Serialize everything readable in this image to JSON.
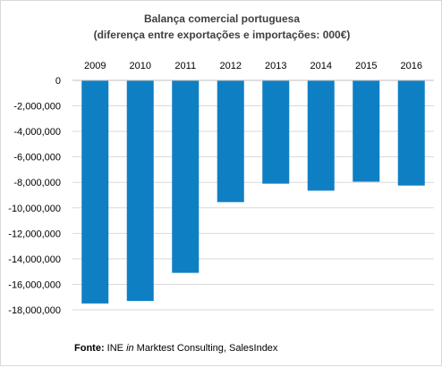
{
  "chart_data": {
    "type": "bar",
    "title": "Balança  comercial  portuguesa",
    "subtitle": "(diferença entre exportações e importações: 000€)",
    "categories": [
      "2009",
      "2010",
      "2011",
      "2012",
      "2013",
      "2014",
      "2015",
      "2016"
    ],
    "values": [
      -17500000,
      -17300000,
      -15100000,
      -9550000,
      -8100000,
      -8650000,
      -7950000,
      -8250000
    ],
    "ylim": [
      -18000000,
      0
    ],
    "yticks": [
      "0",
      "-2,000,000",
      "-4,000,000",
      "-6,000,000",
      "-8,000,000",
      "-10,000,000",
      "-12,000,000",
      "-14,000,000",
      "-16,000,000",
      "-18,000,000"
    ],
    "ytick_values": [
      0,
      -2000000,
      -4000000,
      -6000000,
      -8000000,
      -10000000,
      -12000000,
      -14000000,
      -16000000,
      -18000000
    ],
    "category_axis": "top",
    "grid": true,
    "bar_color": "#0f7fc4",
    "legend": "none"
  },
  "source": {
    "label": "Fonte:",
    "text1": " INE ",
    "italic": "in",
    "text2": " Marktest Consulting, SalesIndex"
  }
}
